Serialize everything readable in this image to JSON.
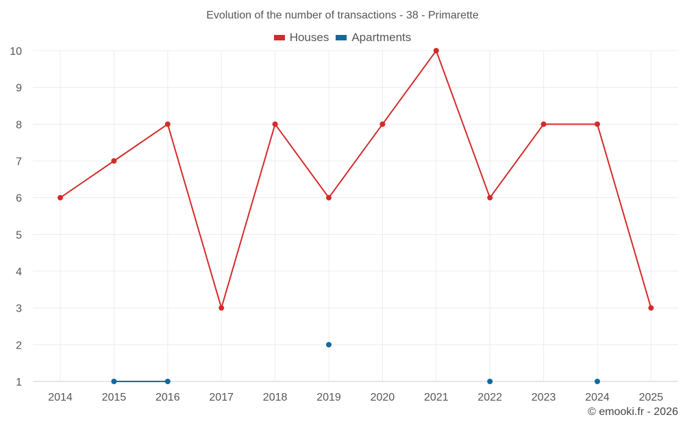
{
  "chart_data": {
    "type": "line",
    "title": "Evolution of the number of transactions - 38 - Primarette",
    "categories": [
      "2014",
      "2015",
      "2016",
      "2017",
      "2018",
      "2019",
      "2020",
      "2021",
      "2022",
      "2023",
      "2024",
      "2025"
    ],
    "series": [
      {
        "name": "Houses",
        "color": "#d42a2a",
        "values": [
          6,
          7,
          8,
          3,
          8,
          6,
          8,
          10,
          6,
          8,
          8,
          3
        ]
      },
      {
        "name": "Apartments",
        "color": "#0f6aa0",
        "values": [
          null,
          1,
          1,
          null,
          null,
          2,
          null,
          null,
          1,
          null,
          1,
          null
        ]
      }
    ],
    "ylim": [
      1,
      10
    ],
    "yticks": [
      1,
      2,
      3,
      4,
      5,
      6,
      7,
      8,
      9,
      10
    ],
    "xlabel": "",
    "ylabel": "",
    "grid": true,
    "legend_position": "top-center"
  },
  "credit": "© emooki.fr - 2026"
}
